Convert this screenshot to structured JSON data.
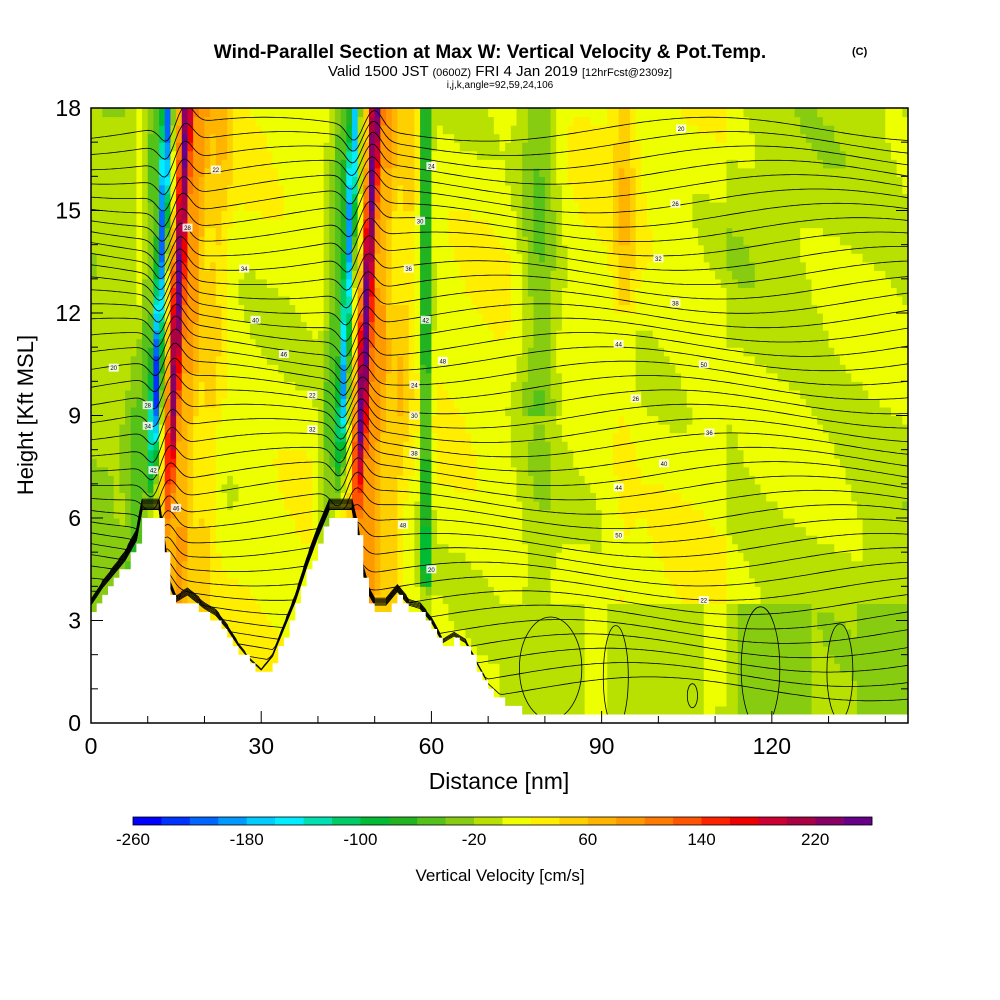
{
  "header": {
    "title": "Wind-Parallel Section at Max W: Vertical Velocity & Pot.Temp.",
    "title_mark": "(C)",
    "valid_prefix": "Valid 1500 JST",
    "valid_utc": "(0600Z)",
    "valid_date": "FRI 4 Jan 2019",
    "forecast": "[12hrFcst@2309z]",
    "indices": "i,j,k,angle=92,59,24,106"
  },
  "chart_data": {
    "type": "heatmap",
    "title": "Wind-Parallel Section at Max W: Vertical Velocity & Pot.Temp.",
    "xlabel": "Distance [nm]",
    "ylabel": "Height [Kft MSL]",
    "xlim": [
      0,
      144
    ],
    "ylim": [
      0,
      18
    ],
    "x_ticks": [
      0,
      30,
      60,
      90,
      120
    ],
    "y_ticks": [
      0,
      3,
      6,
      9,
      12,
      15,
      18
    ],
    "colorbar": {
      "label": "Vertical Velocity [cm/s]",
      "min": -260,
      "max": 260,
      "step": 20,
      "tick_labels": [
        "-260",
        "-180",
        "-100",
        "-20",
        "60",
        "140",
        "220"
      ],
      "colors": [
        "#0000ff",
        "#0033ff",
        "#0066ff",
        "#0099ff",
        "#00ccff",
        "#00eeff",
        "#00e0b0",
        "#00cc66",
        "#00bb33",
        "#22b322",
        "#55c21a",
        "#88cc11",
        "#b8e000",
        "#eeff00",
        "#ffee00",
        "#ffd000",
        "#ffb400",
        "#ff9900",
        "#ff7a00",
        "#ff5500",
        "#ff2200",
        "#ee0000",
        "#cc0033",
        "#aa0044",
        "#880066",
        "#660088"
      ]
    },
    "terrain_kft": [
      [
        0,
        3.3
      ],
      [
        2,
        3.8
      ],
      [
        4,
        4.2
      ],
      [
        6,
        4.6
      ],
      [
        8,
        5.2
      ],
      [
        9,
        6.1
      ],
      [
        12,
        6.1
      ],
      [
        13,
        4.9
      ],
      [
        14,
        3.8
      ],
      [
        15,
        3.4
      ],
      [
        17,
        3.6
      ],
      [
        20,
        3.2
      ],
      [
        22,
        3.0
      ],
      [
        24,
        2.6
      ],
      [
        26,
        2.1
      ],
      [
        28,
        1.7
      ],
      [
        30,
        1.4
      ],
      [
        32,
        1.8
      ],
      [
        34,
        2.6
      ],
      [
        36,
        3.4
      ],
      [
        38,
        4.4
      ],
      [
        40,
        5.3
      ],
      [
        42,
        6.1
      ],
      [
        46,
        6.1
      ],
      [
        47,
        5.4
      ],
      [
        48,
        4.2
      ],
      [
        49,
        3.6
      ],
      [
        50,
        3.3
      ],
      [
        52,
        3.3
      ],
      [
        54,
        3.7
      ],
      [
        56,
        3.3
      ],
      [
        58,
        3.2
      ],
      [
        60,
        2.8
      ],
      [
        62,
        2.2
      ],
      [
        64,
        2.4
      ],
      [
        66,
        2.2
      ],
      [
        68,
        1.6
      ],
      [
        70,
        1.0
      ],
      [
        72,
        0.7
      ],
      [
        74,
        0.5
      ],
      [
        76,
        0.3
      ],
      [
        80,
        0.3
      ],
      [
        100,
        0.3
      ],
      [
        120,
        0.3
      ],
      [
        144,
        0.3
      ]
    ],
    "updrafts": [
      {
        "x": 13.5,
        "peak_cm_s": 220
      },
      {
        "x": 46.8,
        "peak_cm_s": 240
      }
    ],
    "downdrafts": [
      {
        "x": 10.5,
        "peak_cm_s": -220
      },
      {
        "x": 43.5,
        "peak_cm_s": -180
      }
    ],
    "isentrope_labels": [
      "20",
      "22",
      "24",
      "26",
      "28",
      "30",
      "32",
      "34",
      "36",
      "38",
      "40",
      "42",
      "44",
      "46",
      "48",
      "50"
    ]
  }
}
